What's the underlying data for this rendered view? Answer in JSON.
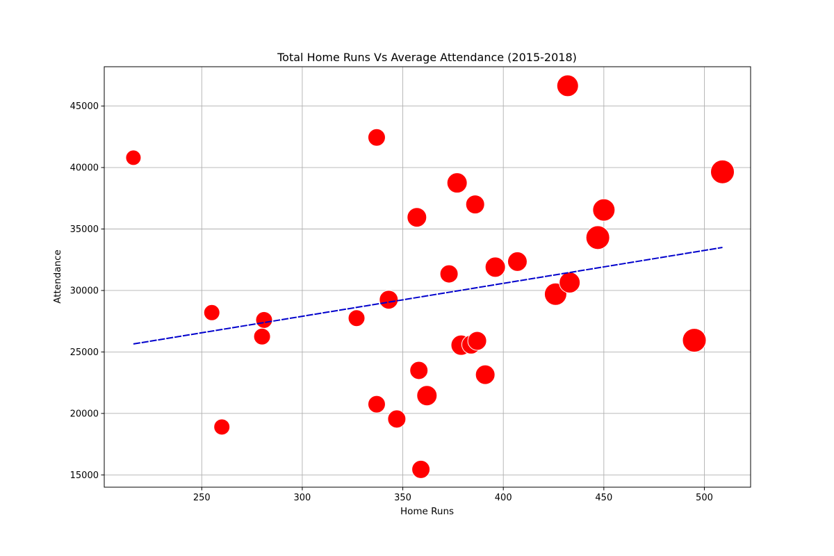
{
  "chart_data": {
    "type": "scatter",
    "title": "Total Home Runs Vs Average Attendance (2015-2018)",
    "xlabel": "Home Runs",
    "ylabel": "Attendance",
    "xlim": [
      201.5,
      523
    ],
    "ylim": [
      14000,
      48200
    ],
    "xticks": [
      250,
      300,
      350,
      400,
      450,
      500
    ],
    "yticks": [
      15000,
      20000,
      25000,
      30000,
      35000,
      40000,
      45000
    ],
    "grid": true,
    "marker_color": "#ff0000",
    "marker_edge_color": "#ffffff",
    "trendline": {
      "color": "#0000cc",
      "x": [
        216,
        509
      ],
      "y": [
        25650,
        33500
      ]
    },
    "points": [
      {
        "x": 216,
        "y": 40800,
        "size": 11
      },
      {
        "x": 255,
        "y": 28200,
        "size": 11.5
      },
      {
        "x": 260,
        "y": 18900,
        "size": 11.5
      },
      {
        "x": 280,
        "y": 26250,
        "size": 12
      },
      {
        "x": 281,
        "y": 27600,
        "size": 12
      },
      {
        "x": 327,
        "y": 27750,
        "size": 12
      },
      {
        "x": 337,
        "y": 42450,
        "size": 12.5
      },
      {
        "x": 337,
        "y": 20750,
        "size": 12.5
      },
      {
        "x": 343,
        "y": 29250,
        "size": 13.5
      },
      {
        "x": 347,
        "y": 19550,
        "size": 13
      },
      {
        "x": 357,
        "y": 35950,
        "size": 14
      },
      {
        "x": 358,
        "y": 23500,
        "size": 13
      },
      {
        "x": 359,
        "y": 15450,
        "size": 13
      },
      {
        "x": 362,
        "y": 21450,
        "size": 14.5
      },
      {
        "x": 373,
        "y": 31350,
        "size": 13
      },
      {
        "x": 377,
        "y": 38750,
        "size": 14.5
      },
      {
        "x": 379,
        "y": 25550,
        "size": 14.5
      },
      {
        "x": 384,
        "y": 25600,
        "size": 13.5
      },
      {
        "x": 386,
        "y": 37000,
        "size": 13.5
      },
      {
        "x": 387,
        "y": 25900,
        "size": 13.5
      },
      {
        "x": 391,
        "y": 23150,
        "size": 14
      },
      {
        "x": 396,
        "y": 31900,
        "size": 14.5
      },
      {
        "x": 407,
        "y": 32350,
        "size": 14
      },
      {
        "x": 426,
        "y": 29700,
        "size": 16
      },
      {
        "x": 432,
        "y": 46650,
        "size": 15.5
      },
      {
        "x": 433,
        "y": 30650,
        "size": 15
      },
      {
        "x": 447,
        "y": 34300,
        "size": 17
      },
      {
        "x": 450,
        "y": 36550,
        "size": 16
      },
      {
        "x": 495,
        "y": 25950,
        "size": 17
      },
      {
        "x": 509,
        "y": 39650,
        "size": 17
      }
    ]
  }
}
